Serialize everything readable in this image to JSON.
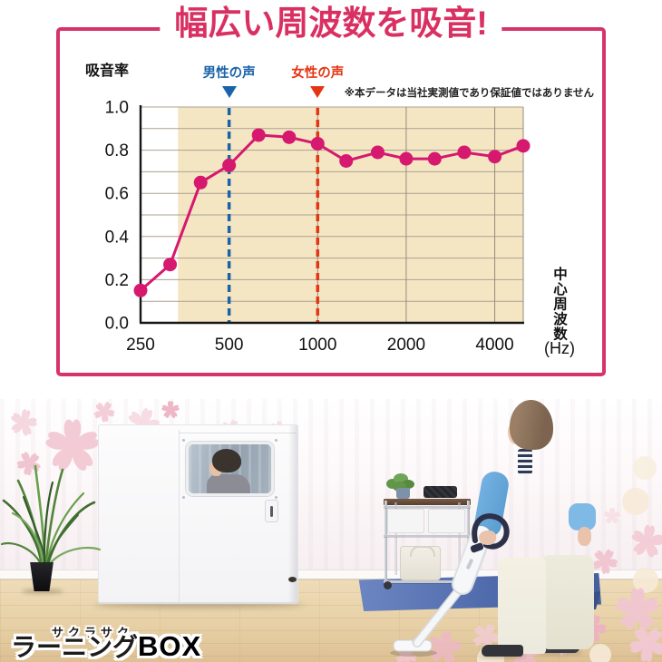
{
  "header": {
    "title": "幅広い周波数を吸音!"
  },
  "colors": {
    "accent_pink": "#d6336c",
    "title_pink": "#d93062",
    "line_magenta": "#d6186f",
    "band_beige": "#f5e6c3",
    "male_blue": "#1a63a8",
    "female_red": "#e43614",
    "logo_accent": "#e02a5c",
    "mat_blue": "#4d68a9"
  },
  "chart_data": {
    "type": "line",
    "title": "幅広い周波数を吸音!",
    "x": [
      250,
      315,
      400,
      500,
      630,
      800,
      1000,
      1250,
      1600,
      2000,
      2500,
      3150,
      4000,
      5000
    ],
    "values": [
      0.15,
      0.27,
      0.65,
      0.73,
      0.87,
      0.86,
      0.83,
      0.75,
      0.79,
      0.76,
      0.76,
      0.79,
      0.77,
      0.82
    ],
    "x_scale": "log",
    "x_max": 5000,
    "x_ticks": [
      250,
      500,
      1000,
      2000,
      4000
    ],
    "x_unit": "(Hz)",
    "x_axis_title": "中心周波数",
    "y_ticks": [
      0.0,
      0.2,
      0.4,
      0.6,
      0.8,
      1.0
    ],
    "ylim": [
      0,
      1.0
    ],
    "y_axis_title": "吸音率",
    "grid_step": 0.1,
    "grid": true,
    "highlight_band_from_hz": 335,
    "band_color": "#f5e6c3",
    "line_color": "#d6186f",
    "markers": [
      {
        "label": "男性の声",
        "hz": 500,
        "color": "#1a63a8"
      },
      {
        "label": "女性の声",
        "hz": 1000,
        "color": "#e43614"
      }
    ],
    "note": "※本データは当社実測値であり保証値ではありません",
    "legend_position": "none"
  },
  "logo": {
    "brand_small": "サクラサク",
    "brand_black": "ラーニング",
    "brand_accent": "BOX"
  }
}
